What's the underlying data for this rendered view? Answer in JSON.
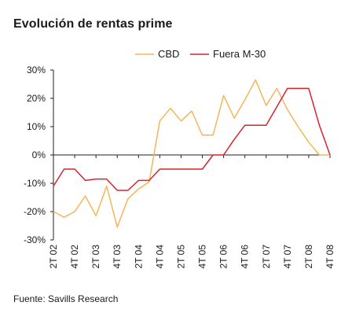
{
  "chart_data": {
    "type": "line",
    "title": "Evolución de rentas prime",
    "source": "Fuente: Savills Research",
    "categories": [
      "2T 02",
      "4T 02",
      "2T 03",
      "4T 03",
      "2T 04",
      "4T 04",
      "2T 05",
      "4T 05",
      "2T 06",
      "4T 06",
      "2T 07",
      "4T 07",
      "2T 08",
      "4T 08"
    ],
    "x_ticks_count": 14,
    "ylim": [
      -30,
      30
    ],
    "y_ticks": [
      -30,
      -20,
      -10,
      0,
      10,
      20,
      30
    ],
    "y_tick_labels": [
      "-30%",
      "-20%",
      "-10%",
      "0%",
      "10%",
      "20%",
      "30%"
    ],
    "grid": false,
    "legend_position": "top",
    "series": [
      {
        "name": "CBD",
        "color": "#F5B55A",
        "x": [
          0,
          0.5,
          1,
          1.5,
          2,
          2.5,
          3,
          3.5,
          4,
          4.5,
          5,
          5.5,
          6,
          6.5,
          7,
          7.5,
          8,
          8.5,
          9,
          9.5,
          10,
          10.5,
          11,
          11.5,
          12,
          12.5,
          13
        ],
        "values": [
          -20,
          -22,
          -20,
          -14.5,
          -21.5,
          -11,
          -25.5,
          -15.5,
          -12,
          -9.5,
          12,
          16.5,
          12,
          15.5,
          7,
          7,
          21,
          13,
          19.5,
          26.5,
          17.5,
          23.5,
          16,
          10,
          4.5,
          0,
          0
        ]
      },
      {
        "name": "Fuera M-30",
        "color": "#D7232E",
        "x": [
          0,
          0.5,
          1,
          1.5,
          2,
          2.5,
          3,
          3.5,
          4,
          4.5,
          5,
          5.5,
          6,
          6.5,
          7,
          7.5,
          8,
          8.5,
          9,
          9.5,
          10,
          10.5,
          11,
          11.5,
          12,
          12.5,
          13
        ],
        "values": [
          -11,
          -5,
          -5,
          -9,
          -8.5,
          -8.5,
          -12.5,
          -12.5,
          -9,
          -9,
          -5,
          -5,
          -5,
          -5,
          -5,
          0,
          0,
          5.5,
          10.5,
          10.5,
          10.5,
          17,
          23.5,
          23.5,
          23.5,
          10.5,
          0
        ]
      }
    ]
  }
}
